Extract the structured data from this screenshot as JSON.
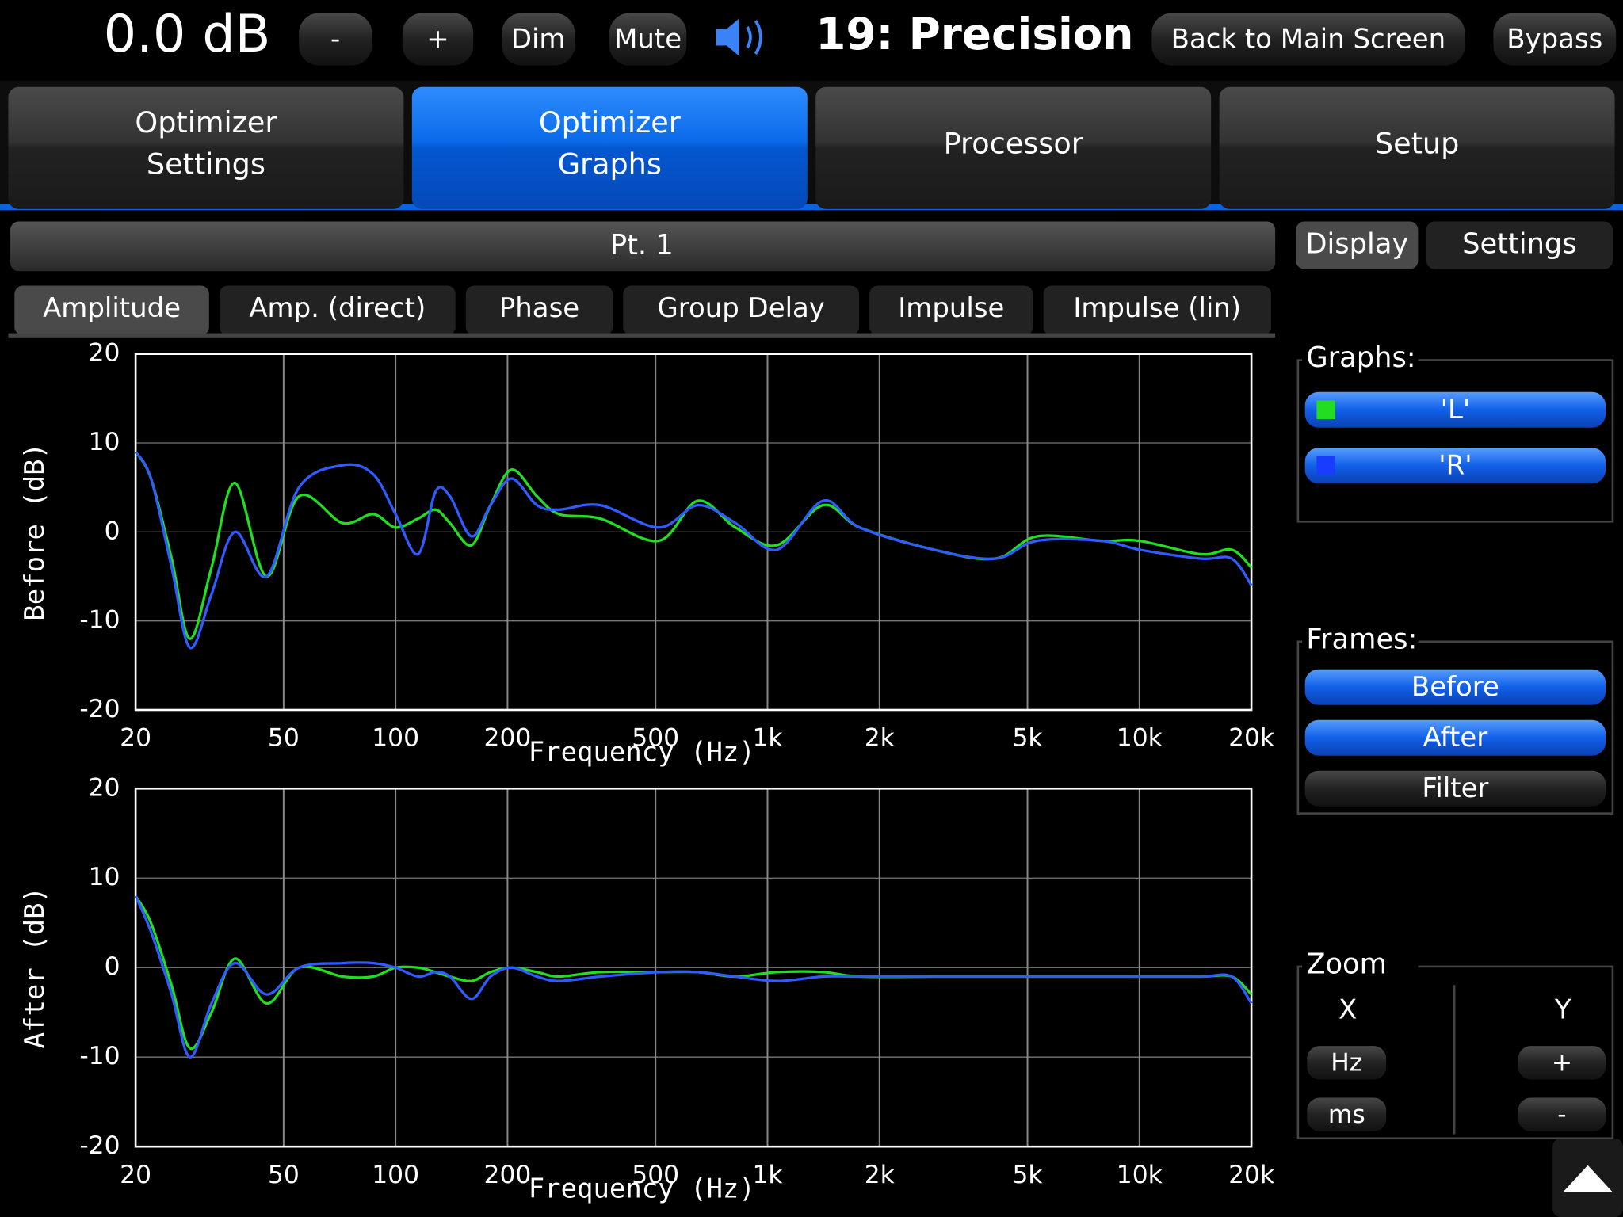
{
  "toolbar": {
    "volume": "0.0 dB",
    "minus": "-",
    "plus": "+",
    "dim": "Dim",
    "mute": "Mute",
    "preset": "19: Precision - :",
    "back": "Back to Main Screen",
    "bypass": "Bypass"
  },
  "tabs": [
    [
      "Optimizer",
      "Settings"
    ],
    [
      "Optimizer",
      "Graphs"
    ],
    [
      "Processor"
    ],
    [
      "Setup"
    ]
  ],
  "active_tab": 1,
  "point": "Pt. 1",
  "graph_tabs": [
    "Amplitude",
    "Amp. (direct)",
    "Phase",
    "Group Delay",
    "Impulse",
    "Impulse (lin)"
  ],
  "active_graph_tab": 0,
  "side_tabs": [
    "Display",
    "Settings"
  ],
  "active_side_tab": 0,
  "graphs_label": "Graphs:",
  "graph_buttons": [
    {
      "label": "'L'",
      "color": "#22dd22"
    },
    {
      "label": "'R'",
      "color": "#1a3cff"
    }
  ],
  "frames_label": "Frames:",
  "frame_buttons": [
    {
      "label": "Before",
      "on": true
    },
    {
      "label": "After",
      "on": true
    },
    {
      "label": "Filter",
      "on": false
    }
  ],
  "zoom": {
    "label": "Zoom",
    "x": "X",
    "y": "Y",
    "x_buttons": [
      "Hz",
      "ms"
    ],
    "y_buttons": [
      "+",
      "-"
    ]
  },
  "chart_data": [
    {
      "type": "line",
      "xscale": "log",
      "ylabel": "Before (dB)",
      "xlabel": "Frequency (Hz)",
      "x": [
        20,
        22,
        25,
        28,
        32,
        37,
        45,
        55,
        72,
        87,
        100,
        115,
        128,
        140,
        160,
        180,
        205,
        240,
        275,
        355,
        510,
        650,
        820,
        1060,
        1410,
        1770,
        2800,
        4100,
        5300,
        7900,
        10000,
        14600,
        17700,
        20000
      ],
      "xlim": [
        20,
        20000
      ],
      "ylim": [
        -20,
        20
      ],
      "yticks": [
        -20,
        -10,
        0,
        10,
        20
      ],
      "xticks": [
        20,
        50,
        100,
        200,
        500,
        {
          "value": 1000,
          "label": "1k"
        },
        {
          "value": 2000,
          "label": "2k"
        },
        {
          "value": 5000,
          "label": "5k"
        },
        {
          "value": 10000,
          "label": "10k"
        },
        {
          "value": 20000,
          "label": "20k"
        }
      ],
      "grid": true,
      "series": [
        {
          "name": "'L'",
          "color": "#22dd22",
          "values": [
            9,
            6,
            -3,
            -12,
            -4,
            5.5,
            -5,
            4,
            1,
            2,
            0.5,
            1.5,
            2.5,
            1,
            -1.5,
            3,
            7,
            4,
            2,
            1.5,
            -1,
            3.5,
            0.5,
            -1.5,
            3,
            0.5,
            -2,
            -3,
            -0.5,
            -1,
            -1,
            -2.5,
            -2,
            -4
          ]
        },
        {
          "name": "'R'",
          "color": "#2f5bff",
          "values": [
            9,
            6,
            -4,
            -13,
            -7,
            0,
            -5,
            5,
            7.5,
            6.5,
            2,
            -2.5,
            4.5,
            4,
            -0.5,
            3,
            6,
            3,
            2.5,
            3,
            0.5,
            3,
            1,
            -2,
            3.5,
            0.5,
            -2,
            -3,
            -1,
            -1,
            -2,
            -3,
            -3,
            -6
          ]
        }
      ]
    },
    {
      "type": "line",
      "xscale": "log",
      "ylabel": "After (dB)",
      "xlabel": "Frequency (Hz)",
      "x": [
        20,
        22,
        25,
        28,
        32,
        37,
        45,
        55,
        72,
        87,
        100,
        115,
        128,
        140,
        160,
        180,
        205,
        240,
        275,
        355,
        510,
        650,
        820,
        1060,
        1410,
        1770,
        2800,
        4100,
        5300,
        7900,
        10000,
        14600,
        17700,
        20000
      ],
      "xlim": [
        20,
        20000
      ],
      "ylim": [
        -20,
        20
      ],
      "yticks": [
        -20,
        -10,
        0,
        10,
        20
      ],
      "xticks": [
        20,
        50,
        100,
        200,
        500,
        {
          "value": 1000,
          "label": "1k"
        },
        {
          "value": 2000,
          "label": "2k"
        },
        {
          "value": 5000,
          "label": "5k"
        },
        {
          "value": 10000,
          "label": "10k"
        },
        {
          "value": 20000,
          "label": "20k"
        }
      ],
      "grid": true,
      "series": [
        {
          "name": "'L'",
          "color": "#22dd22",
          "values": [
            8,
            5,
            -2,
            -9,
            -5,
            1,
            -4,
            0,
            -1,
            -1,
            0,
            0,
            -0.5,
            -1,
            -1.5,
            -0.5,
            0,
            -0.5,
            -1,
            -0.5,
            -0.5,
            -0.5,
            -1,
            -0.5,
            -0.5,
            -1,
            -1,
            -1,
            -1,
            -1,
            -1,
            -1,
            -1,
            -3
          ]
        },
        {
          "name": "'R'",
          "color": "#2f5bff",
          "values": [
            8,
            4,
            -3,
            -10,
            -4,
            0.5,
            -3,
            0,
            0.5,
            0.5,
            0,
            -1,
            -0.5,
            -1,
            -3.5,
            -1,
            0,
            -1,
            -1.5,
            -1,
            -0.5,
            -0.5,
            -1,
            -1.5,
            -1,
            -1,
            -1,
            -1,
            -1,
            -1,
            -1,
            -1,
            -1,
            -4
          ]
        }
      ]
    }
  ]
}
